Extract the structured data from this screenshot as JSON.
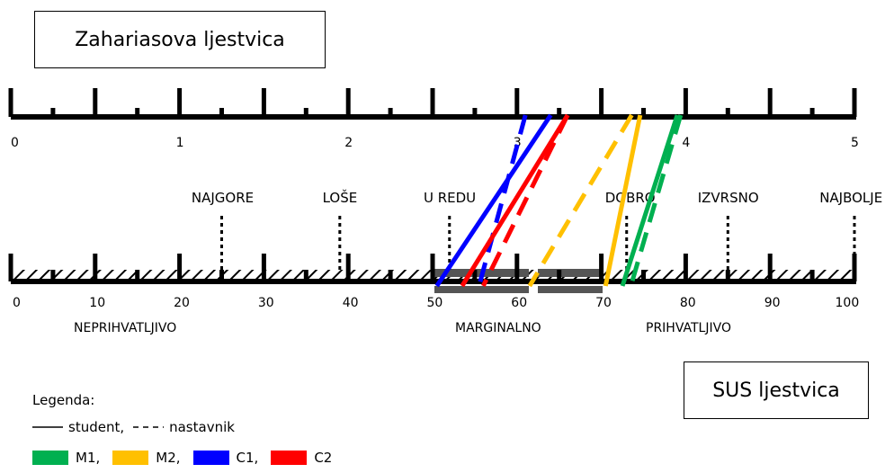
{
  "top_scale": {
    "title": "Zahariasova ljestvica",
    "tick_labels": [
      "0",
      "1",
      "2",
      "3",
      "4",
      "5"
    ]
  },
  "bottom_scale": {
    "title": "SUS ljestvica",
    "tick_labels": [
      "0",
      "10",
      "20",
      "30",
      "40",
      "50",
      "60",
      "70",
      "80",
      "90",
      "100"
    ]
  },
  "adjectives": [
    {
      "label": "NAJGORE",
      "sus": 25
    },
    {
      "label": "LOŠE",
      "sus": 39
    },
    {
      "label": "U REDU",
      "sus": 52
    },
    {
      "label": "DOBRO",
      "sus": 73
    },
    {
      "label": "IZVRSNO",
      "sus": 85
    },
    {
      "label": "NAJBOLJE",
      "sus": 100
    }
  ],
  "acceptability": [
    {
      "label": "NEPRIHVATLJIVO"
    },
    {
      "label": "MARGINALNO"
    },
    {
      "label": "PRIHVATLJIVO"
    }
  ],
  "legend": {
    "title": "Legenda:",
    "student": "student,",
    "teacher": "nastavnik",
    "items": [
      {
        "label": "M1,",
        "color": "#00b050"
      },
      {
        "label": "M2,",
        "color": "#ffc000"
      },
      {
        "label": "C1,",
        "color": "#0000ff"
      },
      {
        "label": "C2",
        "color": "#ff0000"
      }
    ]
  },
  "mappings": [
    {
      "id": "C1",
      "role": "student",
      "color": "#0000ff",
      "zaharias": 3.2,
      "sus": 50.5
    },
    {
      "id": "C1",
      "role": "nastavnik",
      "color": "#0000ff",
      "zaharias": 3.05,
      "sus": 55.5
    },
    {
      "id": "C2",
      "role": "student",
      "color": "#ff0000",
      "zaharias": 3.3,
      "sus": 53.5
    },
    {
      "id": "C2",
      "role": "nastavnik",
      "color": "#ff0000",
      "zaharias": 3.3,
      "sus": 56
    },
    {
      "id": "M2",
      "role": "nastavnik",
      "color": "#ffc000",
      "zaharias": 3.68,
      "sus": 61.5
    },
    {
      "id": "M2",
      "role": "student",
      "color": "#ffc000",
      "zaharias": 3.73,
      "sus": 70.5
    },
    {
      "id": "M1",
      "role": "student",
      "color": "#00b050",
      "zaharias": 3.95,
      "sus": 72.5
    },
    {
      "id": "M1",
      "role": "nastavnik",
      "color": "#00b050",
      "zaharias": 3.97,
      "sus": 73.5
    }
  ]
}
